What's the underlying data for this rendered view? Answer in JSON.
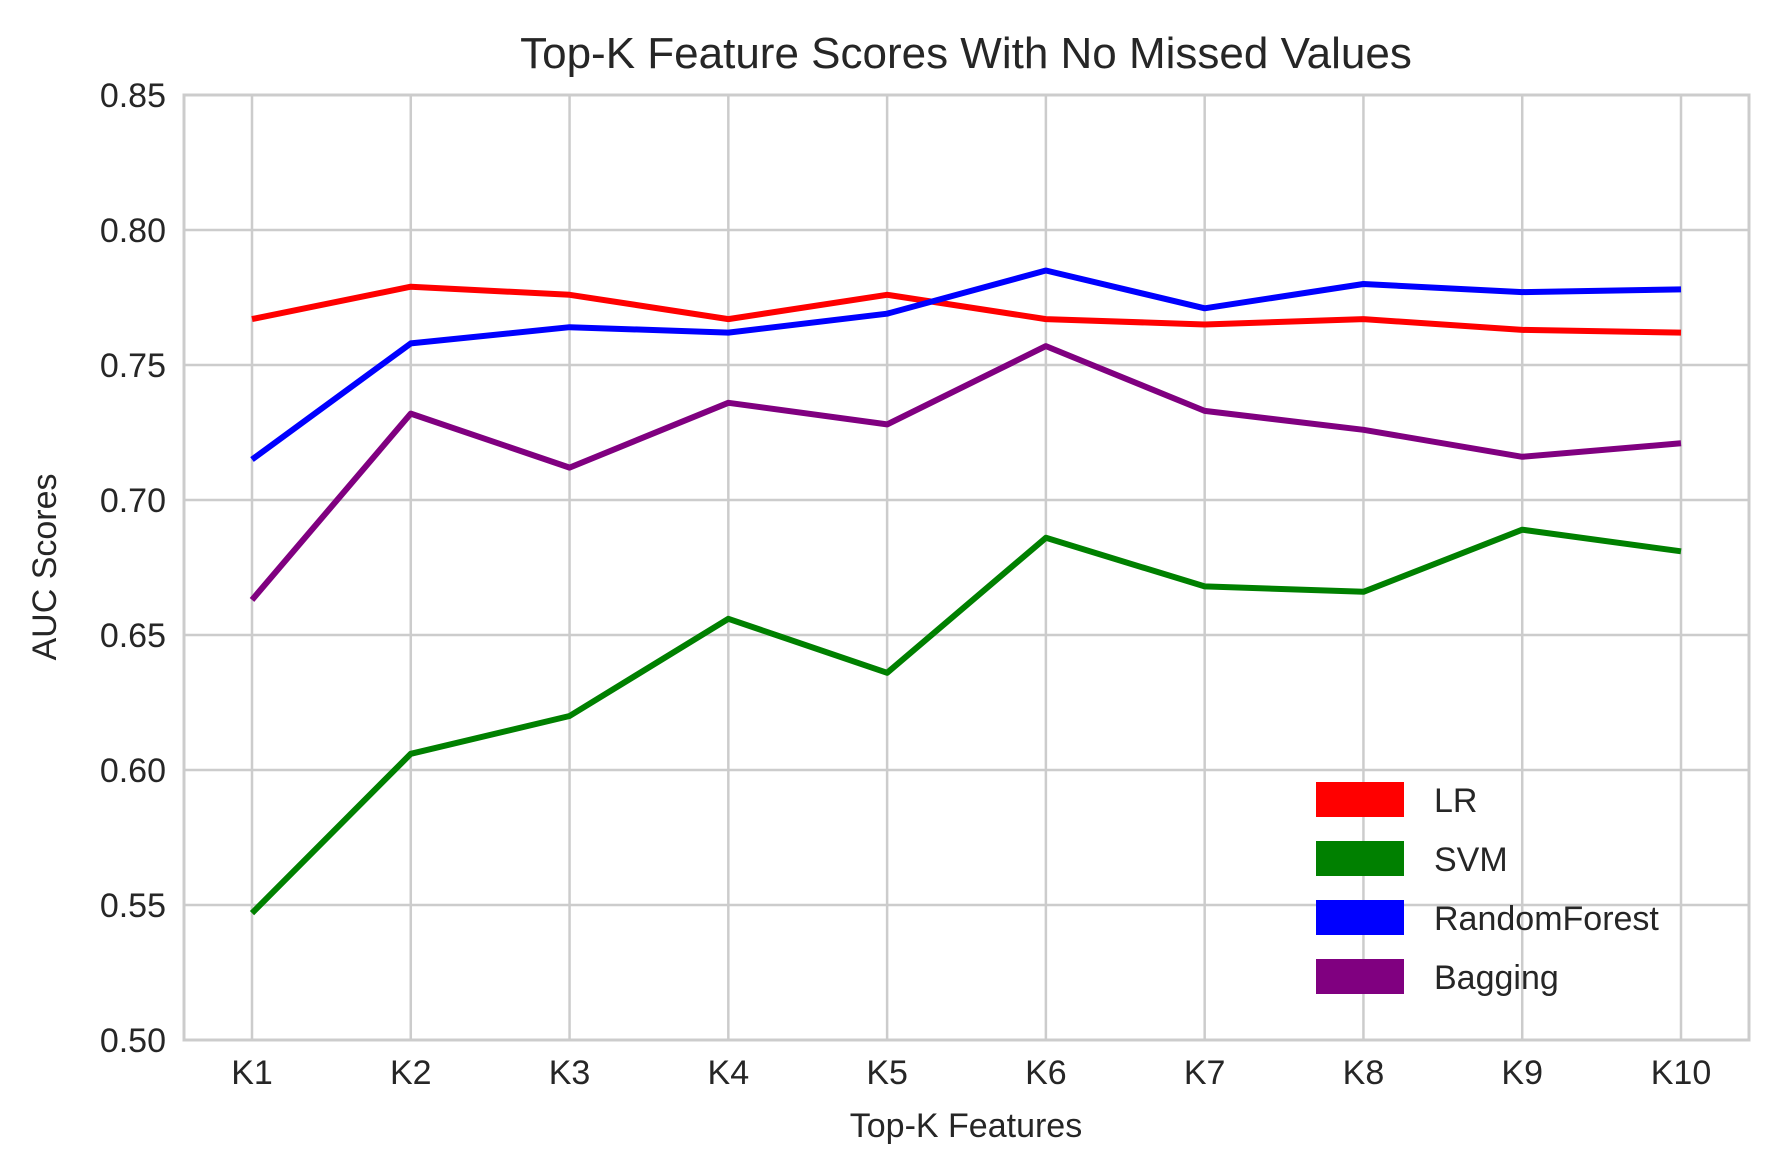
{
  "chart_data": {
    "type": "line",
    "title": "Top-K Feature Scores With No Missed Values",
    "xlabel": "Top-K Features",
    "ylabel": "AUC Scores",
    "categories": [
      "K1",
      "K2",
      "K3",
      "K4",
      "K5",
      "K6",
      "K7",
      "K8",
      "K9",
      "K10"
    ],
    "ylim": [
      0.5,
      0.85
    ],
    "yticks": [
      0.5,
      0.55,
      0.6,
      0.65,
      0.7,
      0.75,
      0.8,
      0.85
    ],
    "ytick_labels": [
      "0.50",
      "0.55",
      "0.60",
      "0.65",
      "0.70",
      "0.75",
      "0.80",
      "0.85"
    ],
    "grid": true,
    "legend_position": "lower-right",
    "series": [
      {
        "name": "LR",
        "color": "#ff0000",
        "values": [
          0.767,
          0.779,
          0.776,
          0.767,
          0.776,
          0.767,
          0.765,
          0.767,
          0.763,
          0.762
        ]
      },
      {
        "name": "SVM",
        "color": "#008000",
        "values": [
          0.547,
          0.606,
          0.62,
          0.656,
          0.636,
          0.686,
          0.668,
          0.666,
          0.689,
          0.681
        ]
      },
      {
        "name": "RandomForest",
        "color": "#0000ff",
        "values": [
          0.715,
          0.758,
          0.764,
          0.762,
          0.769,
          0.785,
          0.771,
          0.78,
          0.777,
          0.778
        ]
      },
      {
        "name": "Bagging",
        "color": "#800080",
        "values": [
          0.663,
          0.732,
          0.712,
          0.736,
          0.728,
          0.757,
          0.733,
          0.726,
          0.716,
          0.721
        ]
      }
    ]
  }
}
